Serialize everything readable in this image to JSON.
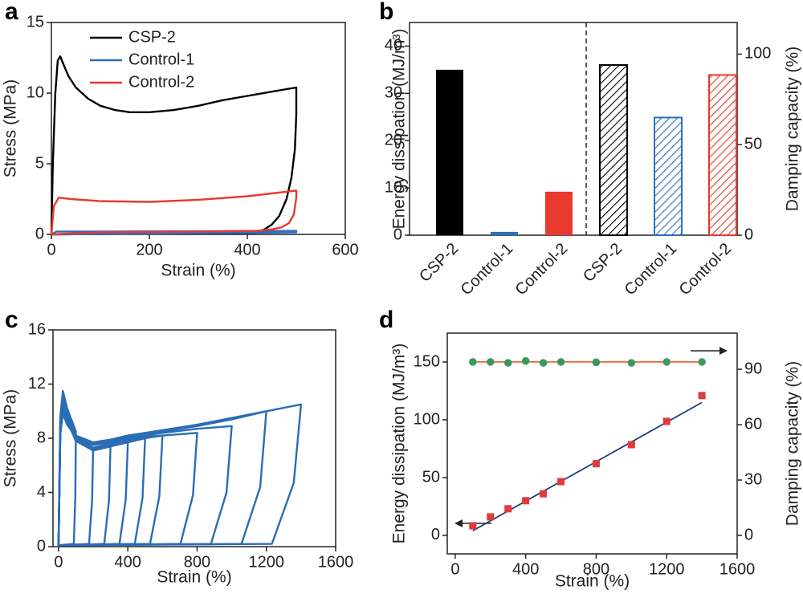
{
  "chart_data": [
    {
      "type": "line",
      "panel": "a",
      "xlabel": "Strain (%)",
      "ylabel": "Stress (MPa)",
      "xlim": [
        0,
        600
      ],
      "xticks": [
        0,
        200,
        400,
        600
      ],
      "ylim": [
        0,
        15
      ],
      "yticks": [
        0,
        5,
        10,
        15
      ],
      "series": [
        {
          "name": "CSP-2",
          "color": "#000000",
          "x": [
            0,
            3,
            8,
            13,
            18,
            25,
            35,
            50,
            75,
            100,
            130,
            160,
            200,
            250,
            300,
            350,
            400,
            450,
            500,
            500,
            497,
            490,
            480,
            465,
            450,
            435,
            420,
            300,
            100,
            0
          ],
          "values": [
            0,
            5,
            10,
            12.3,
            12.6,
            12,
            11.2,
            10.4,
            9.6,
            9.1,
            8.8,
            8.65,
            8.65,
            8.8,
            9.1,
            9.5,
            9.8,
            10.1,
            10.4,
            8.5,
            6,
            4,
            2.5,
            1.3,
            0.7,
            0.35,
            0.12,
            0.05,
            0.03,
            0
          ]
        },
        {
          "name": "Control-1",
          "color": "#2e6fbe",
          "x": [
            0,
            10,
            100,
            300,
            500,
            500,
            300,
            0
          ],
          "values": [
            0,
            0.2,
            0.2,
            0.22,
            0.25,
            0.15,
            0.08,
            0
          ]
        },
        {
          "name": "Control-2",
          "color": "#e8392f",
          "x": [
            0,
            5,
            15,
            40,
            100,
            200,
            300,
            400,
            500,
            500,
            495,
            485,
            470,
            450,
            420,
            300,
            100,
            0
          ],
          "values": [
            0,
            2,
            2.6,
            2.5,
            2.35,
            2.3,
            2.45,
            2.7,
            3.1,
            2.6,
            1.4,
            0.8,
            0.5,
            0.35,
            0.25,
            0.2,
            0.15,
            0
          ]
        }
      ]
    },
    {
      "type": "bar",
      "panel": "b",
      "ylabel": "Energy dissipation (MJ/m³)",
      "y2label": "Damping capacity (%)",
      "categories": [
        "CSP-2",
        "Control-1",
        "Control-2",
        "CSP-2",
        "Control-1",
        "Control-2"
      ],
      "ylim": [
        0,
        45
      ],
      "yticks": [
        0,
        10,
        20,
        30,
        40
      ],
      "y2lim": [
        0,
        117.5
      ],
      "y2ticks": [
        0,
        50,
        100
      ],
      "series": [
        {
          "axis": "y",
          "hatch": false,
          "colors": [
            "#000000",
            "#2e6fbe",
            "#e8392f",
            "#000000",
            "#2e6fbe",
            "#e8392f"
          ],
          "values": [
            35,
            0.7,
            9.2,
            null,
            null,
            null
          ]
        },
        {
          "axis": "y2",
          "hatch": true,
          "colors": [
            "#000000",
            "#2e6fbe",
            "#e8392f",
            "#000000",
            "#2e6fbe",
            "#e8392f"
          ],
          "values": [
            null,
            null,
            null,
            94,
            65,
            88.5
          ]
        }
      ]
    },
    {
      "type": "line",
      "panel": "c",
      "xlabel": "Strain (%)",
      "ylabel": "Stress (MPa)",
      "color": "#2a6db5",
      "xlim": [
        -32,
        1600
      ],
      "xticks": [
        0,
        400,
        800,
        1200,
        1600
      ],
      "ylim": [
        0,
        16
      ],
      "yticks": [
        0,
        4,
        8,
        12,
        16
      ],
      "series": [
        {
          "x": [
            0,
            10,
            25,
            50,
            100,
            97,
            88,
            0
          ],
          "values": [
            0,
            9.6,
            11.5,
            10.2,
            8.5,
            3.7,
            0.2,
            0.1
          ]
        },
        {
          "x": [
            0,
            10,
            25,
            50,
            100,
            200,
            194,
            176,
            0
          ],
          "values": [
            0,
            9.4,
            11.2,
            9.9,
            8.2,
            7.3,
            3.4,
            0.2,
            0.1
          ]
        },
        {
          "x": [
            0,
            10,
            25,
            50,
            100,
            200,
            300,
            291,
            264,
            0
          ],
          "values": [
            0,
            9.2,
            11,
            9.6,
            8,
            7.1,
            7.4,
            3.4,
            0.2,
            0.1
          ]
        },
        {
          "x": [
            0,
            10,
            25,
            50,
            100,
            200,
            300,
            400,
            388,
            352,
            0
          ],
          "values": [
            0,
            9,
            10.8,
            9.5,
            7.9,
            7.2,
            7.5,
            7.7,
            3.5,
            0.2,
            0.1
          ]
        },
        {
          "x": [
            0,
            10,
            25,
            50,
            100,
            200,
            300,
            400,
            500,
            485,
            440,
            0
          ],
          "values": [
            0,
            8.8,
            10.6,
            9.4,
            7.8,
            7.1,
            7.4,
            7.7,
            8,
            3.6,
            0.2,
            0.1
          ]
        },
        {
          "x": [
            0,
            10,
            25,
            50,
            100,
            200,
            300,
            400,
            500,
            600,
            582,
            528,
            0
          ],
          "values": [
            0,
            8.7,
            10.4,
            9.3,
            7.8,
            7.2,
            7.5,
            7.8,
            8,
            8.2,
            3.7,
            0.2,
            0.1
          ]
        },
        {
          "x": [
            0,
            10,
            25,
            50,
            100,
            200,
            300,
            400,
            500,
            600,
            800,
            776,
            704,
            0
          ],
          "values": [
            0,
            8.6,
            10.2,
            9.2,
            7.9,
            7.3,
            7.6,
            7.9,
            8.1,
            8.2,
            8.4,
            3.8,
            0.2,
            0.1
          ]
        },
        {
          "x": [
            0,
            10,
            25,
            50,
            100,
            200,
            300,
            400,
            500,
            600,
            800,
            1000,
            970,
            880,
            0
          ],
          "values": [
            0,
            8.5,
            10,
            9.1,
            8,
            7.5,
            7.7,
            8,
            8.2,
            8.4,
            8.7,
            8.9,
            4,
            0.2,
            0.1
          ]
        },
        {
          "x": [
            0,
            10,
            25,
            50,
            100,
            200,
            300,
            400,
            500,
            600,
            800,
            1000,
            1200,
            1164,
            1056,
            0
          ],
          "values": [
            0,
            8.4,
            9.9,
            9,
            8.1,
            7.6,
            7.8,
            8.1,
            8.3,
            8.5,
            8.9,
            9.4,
            10,
            4.4,
            0.2,
            0.1
          ]
        },
        {
          "x": [
            0,
            10,
            25,
            50,
            100,
            200,
            300,
            400,
            500,
            600,
            800,
            1000,
            1200,
            1400,
            1358,
            1232,
            0
          ],
          "values": [
            0,
            8.3,
            9.8,
            9,
            8.2,
            7.7,
            7.9,
            8.2,
            8.4,
            8.6,
            9,
            9.5,
            10,
            10.5,
            4.7,
            0.2,
            0.1
          ]
        }
      ]
    },
    {
      "type": "scatter",
      "panel": "d",
      "xlabel": "Strain (%)",
      "ylabel": "Energy dissipation (MJ/m³)",
      "y2label": "Damping capacity (%)",
      "xlim": [
        -45,
        1600
      ],
      "xticks": [
        0,
        400,
        800,
        1200,
        1600
      ],
      "ylim": [
        -16,
        175
      ],
      "yticks": [
        0,
        50,
        100,
        150
      ],
      "y2lim": [
        -10,
        109.6
      ],
      "y2ticks": [
        0,
        30,
        60,
        90
      ],
      "series": [
        {
          "axis": "y",
          "color": "#e03a3a",
          "marker": "square",
          "x": [
            100,
            200,
            300,
            400,
            500,
            600,
            800,
            1000,
            1200,
            1400
          ],
          "values": [
            8.3,
            16,
            23,
            30,
            36,
            46.5,
            62,
            78.5,
            98.6,
            121
          ]
        },
        {
          "axis": "y2",
          "color": "#3a9a5a",
          "marker": "circle",
          "x": [
            100,
            200,
            300,
            400,
            500,
            600,
            800,
            1000,
            1200,
            1400
          ],
          "values": [
            94,
            94,
            93.5,
            94.5,
            93.5,
            94,
            93.8,
            93.5,
            94,
            94
          ]
        }
      ],
      "fits": [
        {
          "axis": "y",
          "color": "#1f3f7a",
          "x": [
            100,
            1400
          ],
          "values": [
            4,
            115
          ]
        },
        {
          "axis": "y2",
          "color": "#f0643c",
          "x": [
            100,
            1400
          ],
          "values": [
            94,
            94
          ]
        }
      ]
    }
  ]
}
